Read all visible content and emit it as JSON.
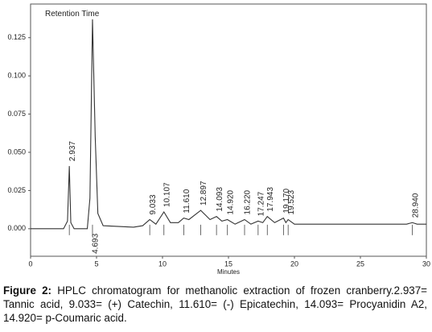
{
  "chart_data": {
    "type": "line",
    "annotation": "Retention Time",
    "xlabel": "Minutes",
    "xlim": [
      0,
      30
    ],
    "xticks": [
      0,
      5,
      10,
      15,
      20,
      25,
      30
    ],
    "ylim": [
      -0.018,
      0.147
    ],
    "yticks": [
      {
        "value": 0,
        "label": "0.000"
      },
      0.025,
      {
        "value": 0.05,
        "label": "0.050"
      },
      0.075,
      {
        "value": 0.1,
        "label": "0.100"
      },
      0.125
    ],
    "color": "#333333",
    "x": [
      0,
      2.5,
      2.8,
      2.937,
      3.05,
      3.3,
      4.3,
      4.5,
      4.693,
      4.9,
      5.1,
      5.5,
      7.8,
      8.5,
      9.033,
      9.5,
      10.107,
      10.6,
      11.2,
      11.61,
      12.0,
      12.897,
      13.6,
      14.093,
      14.5,
      14.92,
      15.5,
      16.22,
      16.7,
      17.247,
      17.6,
      17.943,
      18.5,
      19.17,
      19.35,
      19.523,
      20,
      23,
      28.5,
      28.94,
      29.3,
      30
    ],
    "values": [
      0,
      0,
      0.005,
      0.041,
      0.004,
      0,
      0,
      0.02,
      0.137,
      0.06,
      0.01,
      0.002,
      0.001,
      0.002,
      0.006,
      0.003,
      0.011,
      0.004,
      0.004,
      0.007,
      0.006,
      0.012,
      0.006,
      0.008,
      0.005,
      0.006,
      0.003,
      0.006,
      0.003,
      0.005,
      0.004,
      0.008,
      0.004,
      0.007,
      0.004,
      0.006,
      0.003,
      0.003,
      0.003,
      0.004,
      0.003,
      0.003
    ],
    "peaks": [
      {
        "time": 2.937,
        "label": "2.937",
        "height": 0.041
      },
      {
        "time": 4.693,
        "label": "4.693",
        "height": 0.137
      },
      {
        "time": 9.033,
        "label": "9.033",
        "height": 0.006
      },
      {
        "time": 10.107,
        "label": "10.107",
        "height": 0.011
      },
      {
        "time": 11.61,
        "label": "11.610",
        "height": 0.007
      },
      {
        "time": 12.897,
        "label": "12.897",
        "height": 0.012
      },
      {
        "time": 14.093,
        "label": "14.093",
        "height": 0.008
      },
      {
        "time": 14.92,
        "label": "14.920",
        "height": 0.006
      },
      {
        "time": 16.22,
        "label": "16.220",
        "height": 0.006
      },
      {
        "time": 17.247,
        "label": "17.247",
        "height": 0.005
      },
      {
        "time": 17.943,
        "label": "17.943",
        "height": 0.008
      },
      {
        "time": 19.17,
        "label": "19.170",
        "height": 0.007
      },
      {
        "time": 19.523,
        "label": "19.523",
        "height": 0.006
      },
      {
        "time": 28.94,
        "label": "28.940",
        "height": 0.004
      }
    ]
  },
  "caption": {
    "label": "Figure 2:",
    "text": "HPLC chromatogram for methanolic extraction of frozen cranberry.2.937= Tannic acid, 9.033= (+) Catechin, 11.610= (-) Epicatechin, 14.093= Procyanidin A2, 14.920= p-Coumaric acid."
  }
}
